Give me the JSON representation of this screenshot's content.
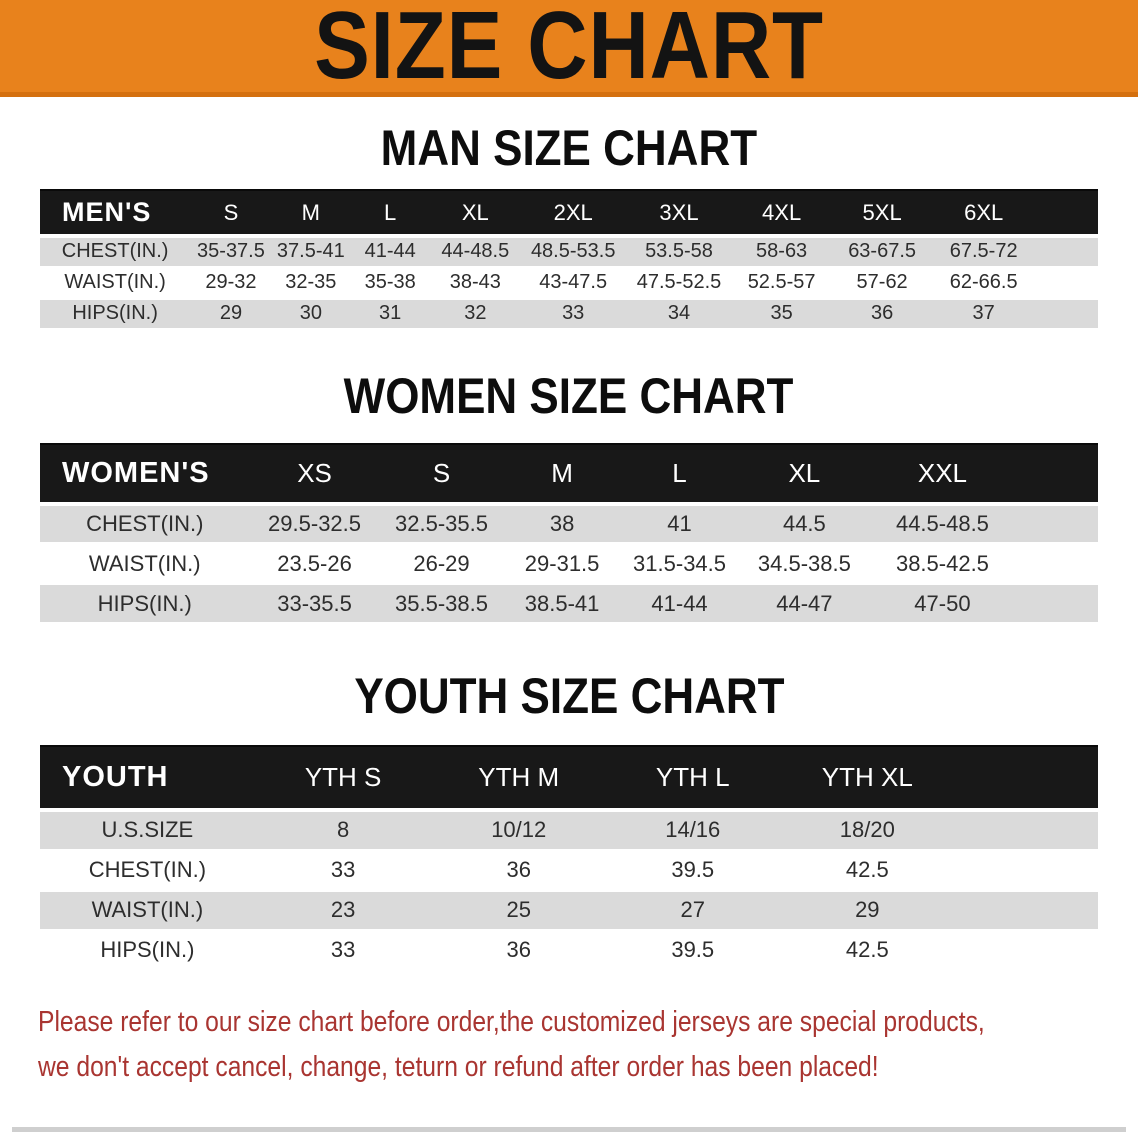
{
  "banner": {
    "title": "SIZE CHART"
  },
  "sections": [
    {
      "heading": "MAN SIZE CHART",
      "table": {
        "header": [
          "MEN'S",
          "S",
          "M",
          "L",
          "XL",
          "2XL",
          "3XL",
          "4XL",
          "5XL",
          "6XL"
        ],
        "rows": [
          {
            "label": "CHEST(IN.)",
            "values": [
              "35-37.5",
              "37.5-41",
              "41-44",
              "44-48.5",
              "48.5-53.5",
              "53.5-58",
              "58-63",
              "63-67.5",
              "67.5-72"
            ]
          },
          {
            "label": "WAIST(IN.)",
            "values": [
              "29-32",
              "32-35",
              "35-38",
              "38-43",
              "43-47.5",
              "47.5-52.5",
              "52.5-57",
              "57-62",
              "62-66.5"
            ]
          },
          {
            "label": "HIPS(IN.)",
            "values": [
              "29",
              "30",
              "31",
              "32",
              "33",
              "34",
              "35",
              "36",
              "37"
            ]
          }
        ]
      }
    },
    {
      "heading": "WOMEN SIZE CHART",
      "table": {
        "header": [
          "WOMEN'S",
          "XS",
          "S",
          "M",
          "L",
          "XL",
          "XXL"
        ],
        "rows": [
          {
            "label": "CHEST(IN.)",
            "values": [
              "29.5-32.5",
              "32.5-35.5",
              "38",
              "41",
              "44.5",
              "44.5-48.5"
            ]
          },
          {
            "label": "WAIST(IN.)",
            "values": [
              "23.5-26",
              "26-29",
              "29-31.5",
              "31.5-34.5",
              "34.5-38.5",
              "38.5-42.5"
            ]
          },
          {
            "label": "HIPS(IN.)",
            "values": [
              "33-35.5",
              "35.5-38.5",
              "38.5-41",
              "41-44",
              "44-47",
              "47-50"
            ]
          }
        ]
      }
    },
    {
      "heading": "YOUTH SIZE CHART",
      "table": {
        "header": [
          "YOUTH",
          "YTH S",
          "YTH M",
          "YTH L",
          "YTH XL"
        ],
        "rows": [
          {
            "label": "U.S.SIZE",
            "values": [
              "8",
              "10/12",
              "14/16",
              "18/20"
            ]
          },
          {
            "label": "CHEST(IN.)",
            "values": [
              "33",
              "36",
              "39.5",
              "42.5"
            ]
          },
          {
            "label": "WAIST(IN.)",
            "values": [
              "23",
              "25",
              "27",
              "29"
            ]
          },
          {
            "label": "HIPS(IN.)",
            "values": [
              "33",
              "36",
              "39.5",
              "42.5"
            ]
          }
        ]
      }
    }
  ],
  "disclaimer": {
    "line1": "Please refer to our size chart before order,the customized jerseys are special products,",
    "line2": "we don't accept cancel, change, teturn or refund after order has been placed!"
  },
  "colors": {
    "banner_bg": "#e8821c",
    "header_bar_bg": "#181818",
    "row_stripe": "#dadada",
    "disclaimer_red": "#a93531"
  }
}
